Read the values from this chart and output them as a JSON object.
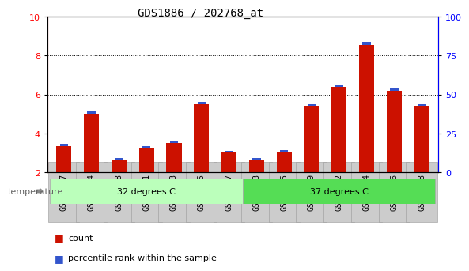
{
  "title": "GDS1886 / 202768_at",
  "categories": [
    "GSM99697",
    "GSM99774",
    "GSM99778",
    "GSM99781",
    "GSM99783",
    "GSM99785",
    "GSM99787",
    "GSM99773",
    "GSM99775",
    "GSM99779",
    "GSM99782",
    "GSM99784",
    "GSM99786",
    "GSM99788"
  ],
  "count_values": [
    3.35,
    5.0,
    2.65,
    3.25,
    3.5,
    5.5,
    3.0,
    2.65,
    3.05,
    5.4,
    6.4,
    8.55,
    6.2,
    5.4
  ],
  "percentile_values": [
    0.12,
    0.12,
    0.09,
    0.1,
    0.1,
    0.12,
    0.1,
    0.09,
    0.09,
    0.12,
    0.12,
    0.16,
    0.12,
    0.12
  ],
  "baseline": 2.0,
  "ylim_left": [
    2,
    10
  ],
  "ylim_right": [
    0,
    100
  ],
  "yticks_left": [
    2,
    4,
    6,
    8,
    10
  ],
  "yticks_right": [
    0,
    25,
    50,
    75,
    100
  ],
  "groups": [
    {
      "label": "32 degrees C",
      "start": 0,
      "end": 7,
      "color": "#bbffbb"
    },
    {
      "label": "37 degrees C",
      "start": 7,
      "end": 14,
      "color": "#55dd55"
    }
  ],
  "temperature_label": "temperature",
  "bar_color_red": "#cc1100",
  "bar_color_blue": "#3355cc",
  "bar_width": 0.55,
  "tick_bg_color": "#cccccc",
  "legend_items": [
    "count",
    "percentile rank within the sample"
  ],
  "grid_color": "#000000",
  "background_color": "#ffffff",
  "title_fontsize": 10,
  "tick_fontsize": 7,
  "axis_label_fontsize": 9
}
